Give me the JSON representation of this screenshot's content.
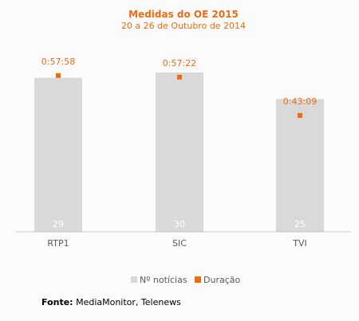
{
  "chart_data": {
    "type": "bar",
    "title": "Medidas do OE 2015",
    "subtitle": "20 a 26 de Outubro de 2014",
    "categories": [
      "RTP1",
      "SIC",
      "TVI"
    ],
    "series": [
      {
        "name": "Nº notícias",
        "values": [
          29,
          30,
          25
        ],
        "color": "#d9d9d9"
      },
      {
        "name": "Duração",
        "values": [
          "0:57:58",
          "0:57:22",
          "0:43:09"
        ],
        "seconds": [
          3478,
          3442,
          2589
        ],
        "color": "#f06a10"
      }
    ],
    "ylim_count": [
      0,
      33
    ],
    "ylim_duration_seconds": [
      0,
      3900
    ],
    "legend": "bottom",
    "grid": false
  },
  "source": {
    "label": "Fonte:",
    "text": "MediaMonitor, Telenews"
  }
}
